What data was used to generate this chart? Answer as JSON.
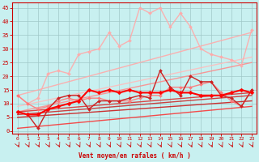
{
  "title": "",
  "xlabel": "Vent moyen/en rafales ( km/h )",
  "ylabel": "",
  "background_color": "#c8f0f0",
  "grid_color": "#a0c8c8",
  "xlim": [
    -0.5,
    23.5
  ],
  "ylim": [
    -1,
    47
  ],
  "yticks": [
    0,
    5,
    10,
    15,
    20,
    25,
    30,
    35,
    40,
    45
  ],
  "xticks": [
    0,
    1,
    2,
    3,
    4,
    5,
    6,
    7,
    8,
    9,
    10,
    11,
    12,
    13,
    14,
    15,
    16,
    17,
    18,
    19,
    20,
    21,
    22,
    23
  ],
  "straight_lines": [
    {
      "x0": 0,
      "y0": 13,
      "x1": 23,
      "y1": 36,
      "color": "#ffaaaa",
      "lw": 1.0,
      "alpha": 0.9
    },
    {
      "x0": 0,
      "y0": 9,
      "x1": 23,
      "y1": 27,
      "color": "#ffbbbb",
      "lw": 1.0,
      "alpha": 0.85
    },
    {
      "x0": 0,
      "y0": 7,
      "x1": 23,
      "y1": 25,
      "color": "#ff8888",
      "lw": 1.0,
      "alpha": 0.85
    },
    {
      "x0": 0,
      "y0": 7,
      "x1": 23,
      "y1": 14,
      "color": "#dd3333",
      "lw": 1.0,
      "alpha": 0.9
    },
    {
      "x0": 0,
      "y0": 6,
      "x1": 23,
      "y1": 13,
      "color": "#cc2222",
      "lw": 1.0,
      "alpha": 0.85
    },
    {
      "x0": 0,
      "y0": 5,
      "x1": 23,
      "y1": 11,
      "color": "#cc1111",
      "lw": 1.0,
      "alpha": 0.85
    },
    {
      "x0": 0,
      "y0": 1,
      "x1": 23,
      "y1": 9,
      "color": "#ff2222",
      "lw": 1.0,
      "alpha": 0.8
    }
  ],
  "data_lines": [
    {
      "x": [
        0,
        1,
        2,
        3,
        4,
        5,
        6,
        7,
        8,
        9,
        10,
        11,
        12,
        13,
        14,
        15,
        16,
        17,
        18,
        19,
        20,
        21,
        22,
        23
      ],
      "y": [
        13,
        10,
        12,
        21,
        22,
        21,
        28,
        29,
        30,
        36,
        31,
        33,
        45,
        43,
        45,
        38,
        43,
        38,
        30,
        28,
        27,
        26,
        24,
        37
      ],
      "color": "#ffaaaa",
      "lw": 1.0,
      "marker": "D",
      "markersize": 2.0,
      "alpha": 0.9
    },
    {
      "x": [
        0,
        1,
        2,
        3,
        4,
        5,
        6,
        7,
        8,
        9,
        10,
        11,
        12,
        13,
        14,
        15,
        16,
        17,
        18,
        19,
        20,
        21,
        22,
        23
      ],
      "y": [
        13,
        10,
        8,
        9,
        11,
        12,
        11,
        12,
        12,
        11,
        11,
        11,
        12,
        13,
        13,
        16,
        16,
        16,
        17,
        18,
        14,
        11,
        9,
        15
      ],
      "color": "#ff7777",
      "lw": 1.0,
      "marker": "D",
      "markersize": 2.0,
      "alpha": 0.9
    },
    {
      "x": [
        0,
        1,
        2,
        3,
        4,
        5,
        6,
        7,
        8,
        9,
        10,
        11,
        12,
        13,
        14,
        15,
        16,
        17,
        18,
        19,
        20,
        21,
        22,
        23
      ],
      "y": [
        7,
        6,
        1,
        8,
        12,
        13,
        13,
        8,
        11,
        11,
        11,
        12,
        13,
        12,
        22,
        16,
        13,
        20,
        18,
        18,
        13,
        12,
        9,
        15
      ],
      "color": "#cc2222",
      "lw": 1.0,
      "marker": "D",
      "markersize": 2.0,
      "alpha": 1.0
    },
    {
      "x": [
        0,
        1,
        2,
        3,
        4,
        5,
        6,
        7,
        8,
        9,
        10,
        11,
        12,
        13,
        14,
        15,
        16,
        17,
        18,
        19,
        20,
        21,
        22,
        23
      ],
      "y": [
        7,
        6,
        6,
        8,
        9,
        10,
        11,
        15,
        14,
        15,
        14,
        15,
        14,
        14,
        14,
        15,
        14,
        14,
        13,
        13,
        13,
        14,
        15,
        14
      ],
      "color": "#ff0000",
      "lw": 1.5,
      "marker": "D",
      "markersize": 2.5,
      "alpha": 1.0
    }
  ]
}
